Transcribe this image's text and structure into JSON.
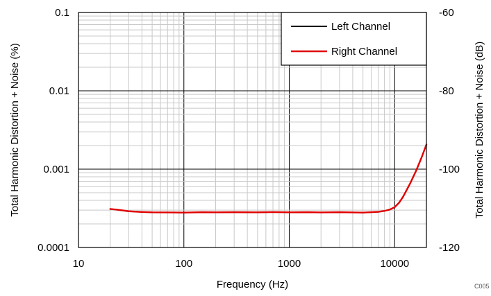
{
  "chart_data": {
    "type": "line",
    "title": "",
    "xlabel": "Frequency (Hz)",
    "ylabel": "Total Harmonic Distortion + Noise (%)",
    "ylabel_right": "Total Harmonic Distortion + Noise (dB)",
    "x_scale": "log",
    "y_scale": "log",
    "xlim": [
      10,
      20000
    ],
    "ylim": [
      0.0001,
      0.1
    ],
    "ylim_right": [
      -120,
      -60
    ],
    "grid": true,
    "legend_position": "top-right",
    "x_ticks": [
      "10",
      "100",
      "1000",
      "10000"
    ],
    "y_ticks": [
      "0.1",
      "0.01",
      "0.001",
      "0.0001"
    ],
    "y_ticks_right": [
      "-60",
      "-80",
      "-100",
      "-120"
    ],
    "series": [
      {
        "name": "Left Channel",
        "color": "#000000",
        "x": [
          20,
          25,
          30,
          40,
          50,
          70,
          100,
          150,
          200,
          300,
          500,
          700,
          1000,
          1500,
          2000,
          3000,
          5000,
          7000,
          8000,
          9000,
          10000,
          11000,
          12000,
          14000,
          16000,
          18000,
          20000
        ],
        "y": [
          0.00031,
          0.000298,
          0.000289,
          0.000283,
          0.00028,
          0.000279,
          0.000278,
          0.000281,
          0.00028,
          0.000281,
          0.00028,
          0.000282,
          0.00028,
          0.000281,
          0.000279,
          0.000281,
          0.000278,
          0.000284,
          0.000292,
          0.000303,
          0.000325,
          0.00037,
          0.00044,
          0.00065,
          0.00095,
          0.0014,
          0.00205
        ]
      },
      {
        "name": "Right Channel",
        "color": "#e00000",
        "x": [
          20,
          25,
          30,
          40,
          50,
          70,
          100,
          150,
          200,
          300,
          500,
          700,
          1000,
          1500,
          2000,
          3000,
          5000,
          7000,
          8000,
          9000,
          10000,
          11000,
          12000,
          14000,
          16000,
          18000,
          20000
        ],
        "y": [
          0.00031,
          0.0003,
          0.00029,
          0.000284,
          0.000281,
          0.00028,
          0.000279,
          0.000282,
          0.000281,
          0.000282,
          0.000281,
          0.000283,
          0.000281,
          0.000282,
          0.00028,
          0.000282,
          0.000279,
          0.000285,
          0.000293,
          0.000305,
          0.000327,
          0.000372,
          0.000443,
          0.000655,
          0.00096,
          0.00141,
          0.00206
        ]
      }
    ],
    "annotation": "C005"
  }
}
